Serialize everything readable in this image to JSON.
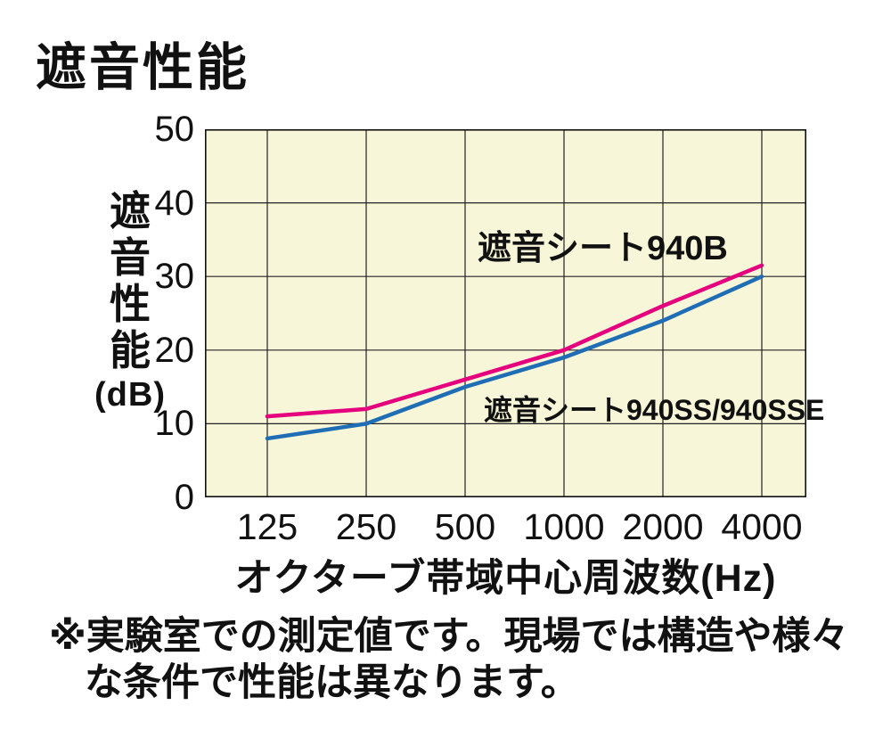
{
  "page": {
    "title": "遮音性能",
    "note_line1": "※実験室での測定値です。現場では構造や様々",
    "note_line2": "な条件で性能は異なります。"
  },
  "chart_data": {
    "type": "line",
    "title": "遮音性能",
    "x": [
      125,
      250,
      500,
      1000,
      2000,
      4000
    ],
    "x_scale": "log2",
    "xtick_labels": [
      "125",
      "250",
      "500",
      "1000",
      "2000",
      "4000"
    ],
    "xlabel": "オクターブ帯域中心周波数(Hz)",
    "ylabel": "遮音性能(dB)",
    "ylabel_chars": [
      "遮",
      "音",
      "性",
      "能"
    ],
    "ylabel_unit": "(dB)",
    "ylim": [
      0,
      50
    ],
    "yticks": [
      0,
      10,
      20,
      30,
      40,
      50
    ],
    "grid": true,
    "plot_bg": "#f8f6d8",
    "grid_color": "#222222",
    "series": [
      {
        "name": "遮音シート940B",
        "color": "#e5007d",
        "values": [
          11,
          12,
          16,
          20,
          26,
          31.5
        ]
      },
      {
        "name": "遮音シート940SS/940SSE",
        "color": "#1f6db4",
        "values": [
          8,
          10,
          15,
          19,
          24,
          30
        ]
      }
    ],
    "note": "※実験室での測定値です。現場では構造や様々な条件で性能は異なります。"
  }
}
